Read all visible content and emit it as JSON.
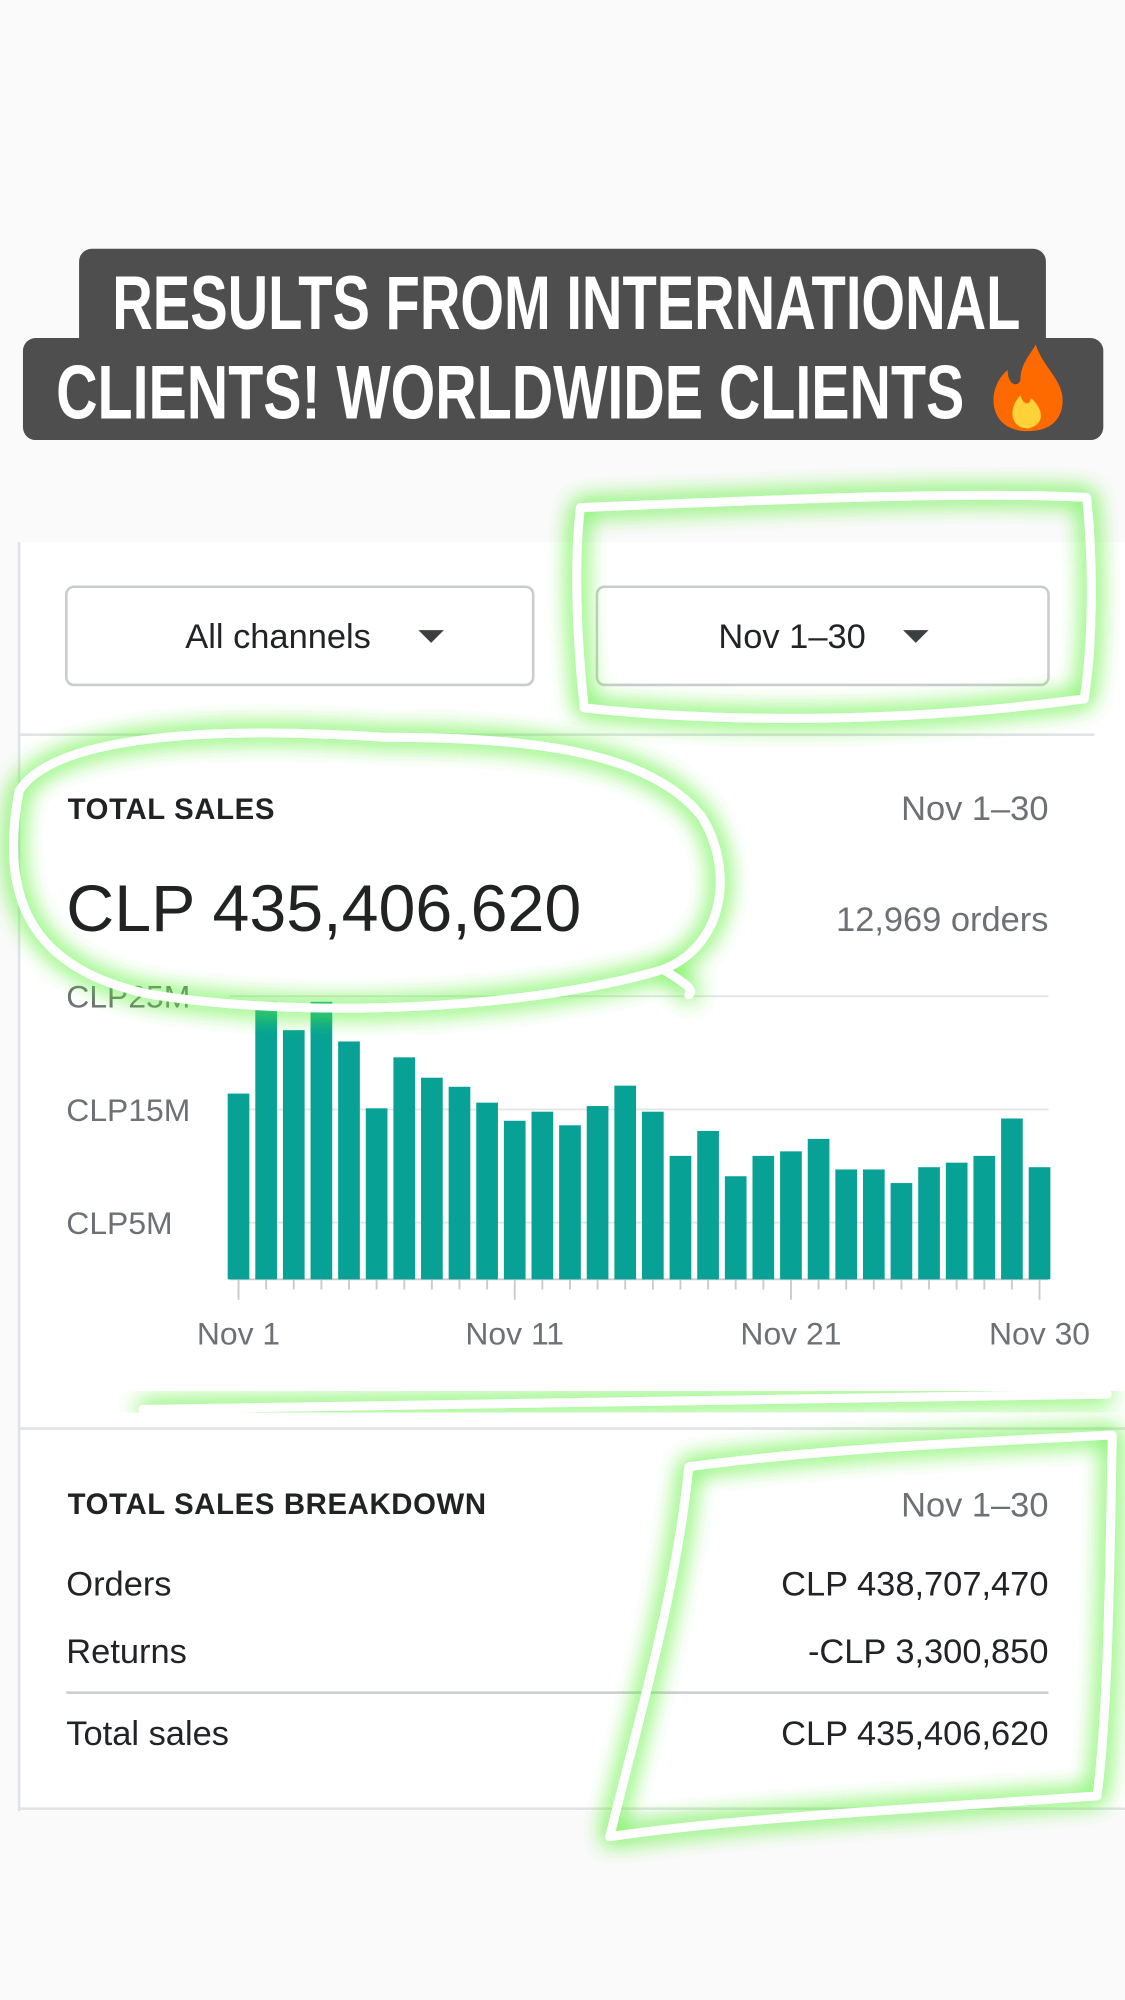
{
  "caption": {
    "lines": [
      "RESULTS FROM INTERNATIONAL",
      "CLIENTS! WORLDWIDE CLIENTS"
    ]
  },
  "filters": {
    "channel": "All channels",
    "date_range": "Nov 1–30"
  },
  "total_sales": {
    "title": "TOTAL SALES",
    "date_range": "Nov 1–30",
    "amount": "CLP 435,406,620",
    "orders": "12,969 orders"
  },
  "chart_data": {
    "type": "bar",
    "categories": [
      "Nov 1",
      null,
      null,
      null,
      null,
      null,
      null,
      null,
      null,
      null,
      "Nov 11",
      null,
      null,
      null,
      null,
      null,
      null,
      null,
      null,
      null,
      "Nov 21",
      null,
      null,
      null,
      null,
      null,
      null,
      null,
      null,
      "Nov 30"
    ],
    "values": [
      16.4,
      24.5,
      22,
      24.5,
      21,
      15.1,
      19.6,
      17.8,
      17.0,
      15.6,
      14.0,
      14.8,
      13.6,
      15.3,
      17.1,
      14.8,
      10.9,
      13.1,
      9.1,
      10.9,
      11.3,
      12.4,
      9.7,
      9.7,
      8.5,
      9.9,
      10.3,
      10.9,
      14.2,
      9.9
    ],
    "color": "#07a295",
    "ylim": [
      0,
      25
    ],
    "yticks": [
      {
        "value": 5,
        "label": "CLP5M"
      },
      {
        "value": 15,
        "label": "CLP15M"
      },
      {
        "value": 25,
        "label": "CLP25M"
      }
    ],
    "grid": true
  },
  "breakdown": {
    "title": "TOTAL SALES BREAKDOWN",
    "date_range": "Nov 1–30",
    "rows": [
      [
        "Orders",
        "CLP 438,707,470"
      ],
      [
        "Returns",
        "-CLP 3,300,850"
      ],
      [
        "Total sales",
        "CLP 435,406,620"
      ]
    ]
  }
}
